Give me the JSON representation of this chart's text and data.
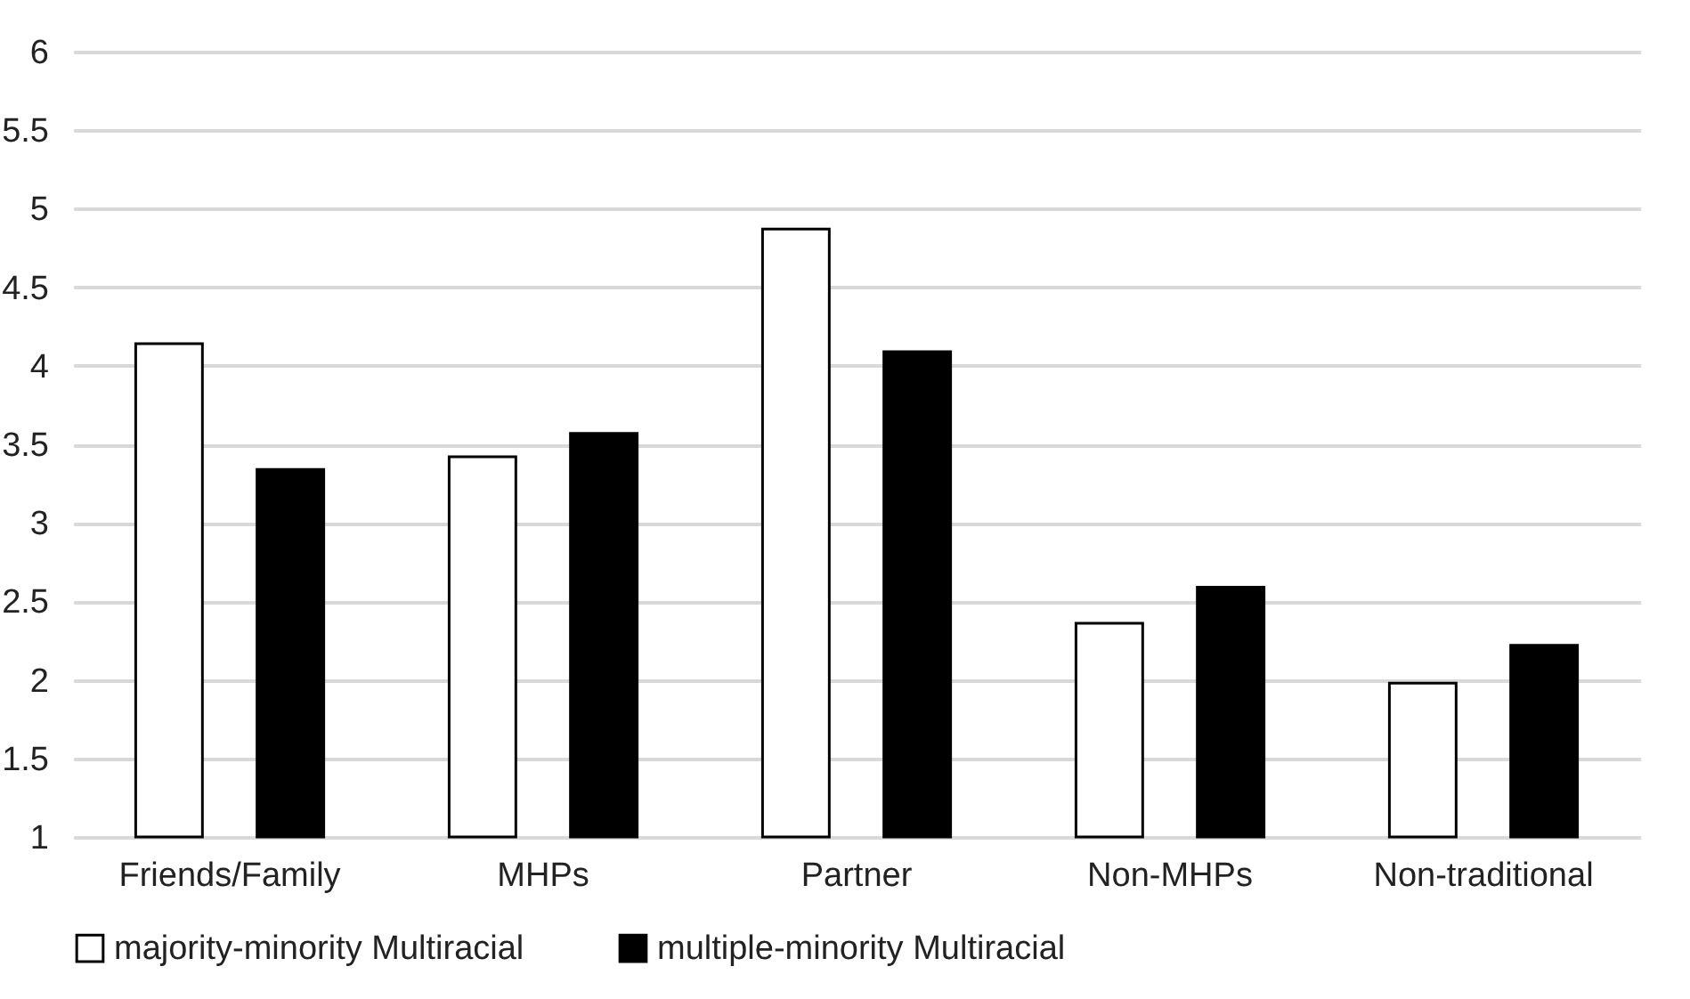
{
  "chart_data": {
    "type": "bar",
    "categories": [
      "Friends/Family",
      "MHPs",
      "Partner",
      "Non-MHPs",
      "Non-traditional"
    ],
    "series": [
      {
        "name": "majority-minority Multiracial",
        "color": "#ffffff",
        "values": [
          4.14,
          3.42,
          4.87,
          2.36,
          1.98
        ]
      },
      {
        "name": "multiple-minority Multiracial",
        "color": "#000000",
        "values": [
          3.34,
          3.57,
          4.09,
          2.59,
          2.22
        ]
      }
    ],
    "ylim": [
      1,
      6
    ],
    "yticks": [
      1,
      1.5,
      2,
      2.5,
      3,
      3.5,
      4,
      4.5,
      5,
      5.5,
      6
    ],
    "grid": "y",
    "legend": "bottom"
  }
}
